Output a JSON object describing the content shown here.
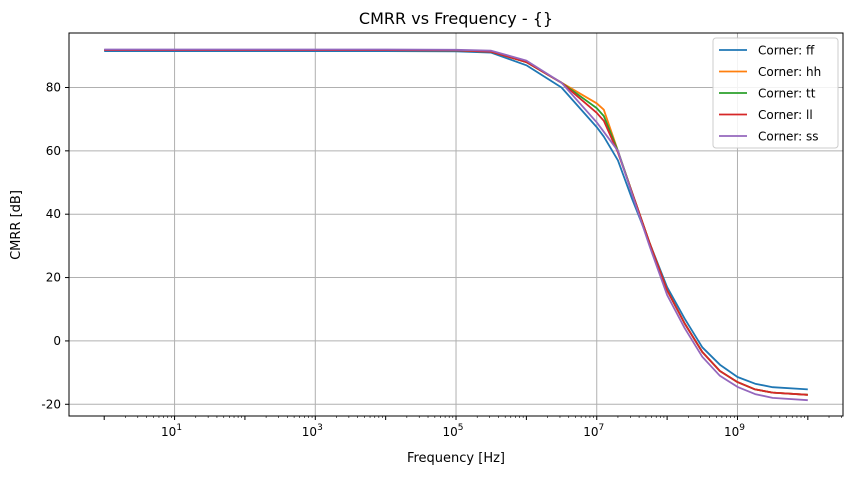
{
  "chart_data": {
    "type": "line",
    "title": "CMRR vs Frequency - {}",
    "xlabel": "Frequency [Hz]",
    "ylabel": "CMRR [dB]",
    "xscale": "log",
    "xlim": [
      0.316,
      31600000000
    ],
    "ylim": [
      -23.7,
      97.2
    ],
    "grid": true,
    "legend_position": "top-right",
    "x_ticks": [
      {
        "value": 10,
        "label": "10",
        "exp": "1"
      },
      {
        "value": 1000,
        "label": "10",
        "exp": "3"
      },
      {
        "value": 100000,
        "label": "10",
        "exp": "5"
      },
      {
        "value": 10000000,
        "label": "10",
        "exp": "7"
      },
      {
        "value": 1000000000,
        "label": "10",
        "exp": "9"
      }
    ],
    "y_ticks": [
      -20,
      0,
      20,
      40,
      60,
      80
    ],
    "x": [
      1,
      10,
      100,
      1000,
      10000,
      100000,
      316000,
      1000000,
      3160000,
      10000000,
      12600000,
      20000000,
      31600000,
      56200000,
      100000000,
      178000000,
      316000000,
      562000000,
      1000000000,
      1780000000,
      3160000000,
      10000000000
    ],
    "series": [
      {
        "name": "Corner: ff",
        "color": "#1f77b4",
        "values": [
          91.5,
          91.5,
          91.5,
          91.5,
          91.5,
          91.4,
          91,
          87,
          80,
          67.5,
          64.5,
          57,
          45,
          31,
          17,
          7,
          -2,
          -7.5,
          -11.4,
          -13.5,
          -14.6,
          -15.3
        ]
      },
      {
        "name": "Corner: hh",
        "color": "#ff7f0e",
        "values": [
          91.8,
          91.8,
          91.8,
          91.8,
          91.8,
          91.7,
          91.3,
          88,
          81.5,
          75,
          73,
          60,
          47,
          31,
          16,
          5.5,
          -3.5,
          -9.5,
          -13,
          -15.3,
          -16.3,
          -17
        ]
      },
      {
        "name": "Corner: tt",
        "color": "#2ca02c",
        "values": [
          91.8,
          91.8,
          91.8,
          91.8,
          91.8,
          91.7,
          91.3,
          88,
          81.5,
          73.5,
          71,
          60,
          47,
          31,
          16,
          5.5,
          -3.5,
          -9.5,
          -13,
          -15.3,
          -16.3,
          -17
        ]
      },
      {
        "name": "Corner: ll",
        "color": "#d62728",
        "values": [
          91.8,
          91.8,
          91.8,
          91.8,
          91.8,
          91.7,
          91.3,
          88,
          81.5,
          72,
          69.5,
          59.5,
          47,
          31,
          16,
          5.5,
          -3.5,
          -9.5,
          -13,
          -15.3,
          -16.3,
          -17
        ]
      },
      {
        "name": "Corner: ss",
        "color": "#9467bd",
        "values": [
          92,
          92,
          92,
          92,
          92,
          91.9,
          91.6,
          88.5,
          81.5,
          69,
          66,
          60,
          46.5,
          30,
          14.5,
          4,
          -5,
          -11,
          -14.5,
          -16.8,
          -18,
          -18.7
        ]
      }
    ]
  }
}
